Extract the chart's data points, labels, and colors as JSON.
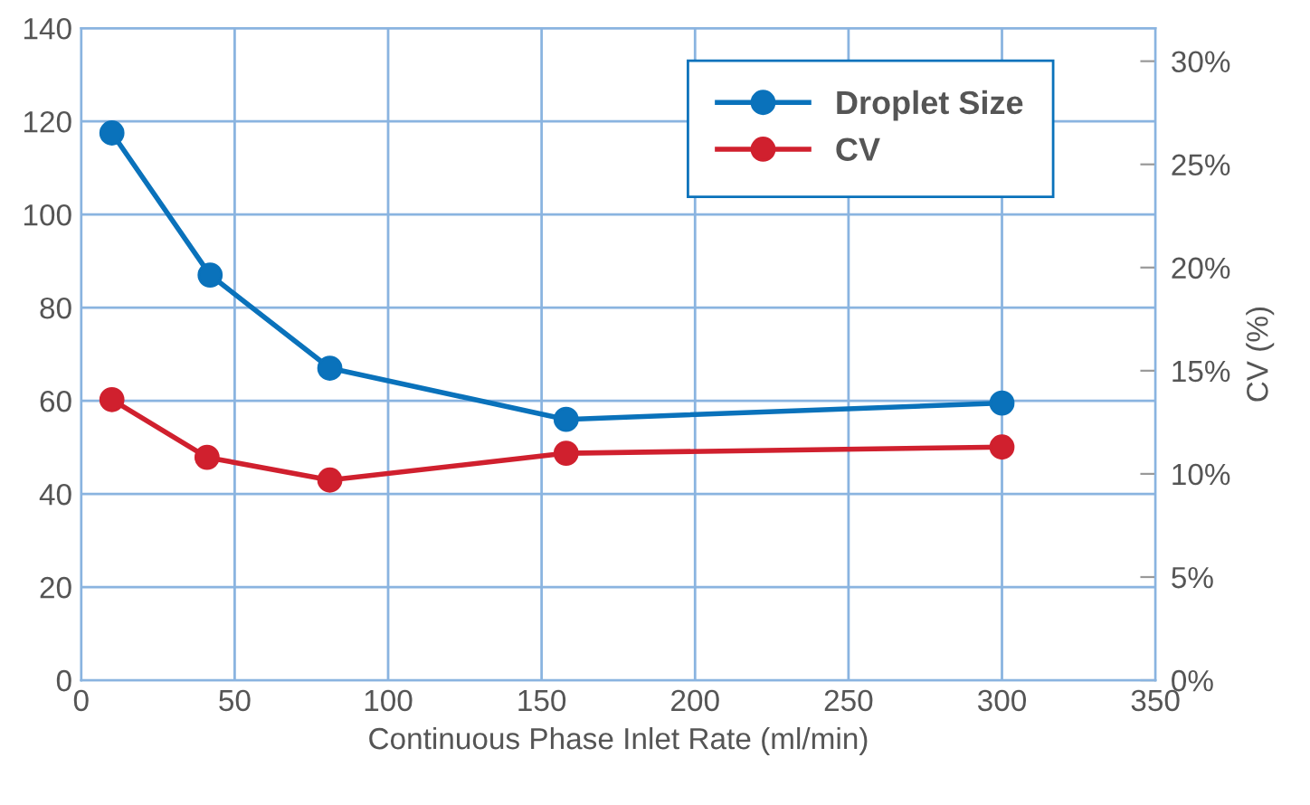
{
  "chart_data": {
    "type": "line",
    "xlabel": "Continuous Phase Inlet Rate (ml/min)",
    "y2label": "CV (%)",
    "xlim": [
      0,
      350
    ],
    "xticks": [
      0,
      50,
      100,
      150,
      200,
      250,
      300,
      350
    ],
    "ylim": [
      0,
      140
    ],
    "yticks": [
      0,
      20,
      40,
      60,
      80,
      100,
      120,
      140
    ],
    "y2lim": [
      0,
      31.6
    ],
    "y2ticks": [
      {
        "value": 0,
        "label": "0%"
      },
      {
        "value": 5,
        "label": "5%"
      },
      {
        "value": 10,
        "label": "10%"
      },
      {
        "value": 15,
        "label": "15%"
      },
      {
        "value": 20,
        "label": "20%"
      },
      {
        "value": 25,
        "label": "25%"
      },
      {
        "value": 30,
        "label": "30%"
      }
    ],
    "grid": true,
    "legend": "top right",
    "marker": "circle",
    "line_style": "solid",
    "series": [
      {
        "name": "Droplet Size",
        "color": "#0a72bb",
        "x": [
          10,
          42,
          81,
          158,
          300
        ],
        "values": [
          117.5,
          87,
          67,
          56,
          59.5
        ]
      },
      {
        "name": "CV",
        "color": "#d0202e",
        "axis": "y2",
        "x": [
          10,
          41,
          81,
          158,
          300
        ],
        "values": [
          13.6,
          10.8,
          9.7,
          11.0,
          11.3
        ]
      }
    ]
  }
}
